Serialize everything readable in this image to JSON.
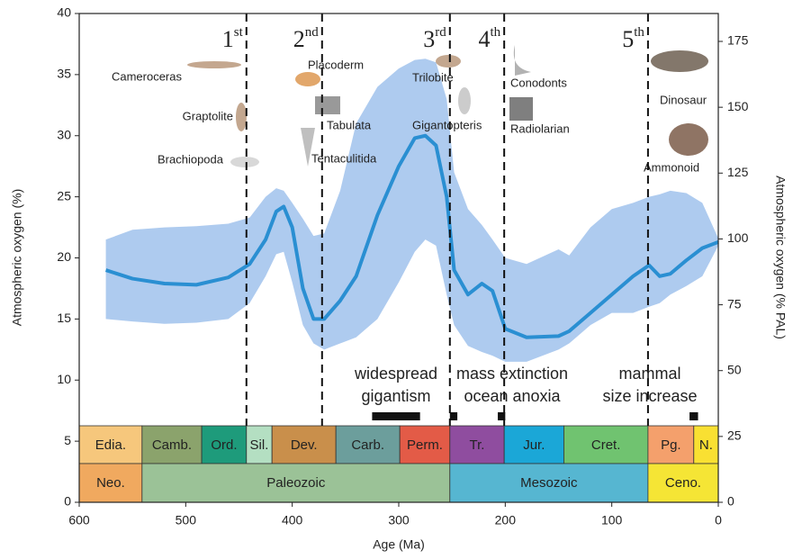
{
  "chart_data": {
    "type": "line",
    "xlabel": "Age (Ma)",
    "ylabel": "Atmospheric oxygen (%)",
    "y2label": "Atmospheric oxygen (% PAL)",
    "xlim": [
      600,
      0
    ],
    "ylim": [
      0,
      40
    ],
    "y2lim": [
      0,
      185.6
    ],
    "xticks": [
      600,
      500,
      400,
      300,
      200,
      100,
      0
    ],
    "yticks": [
      0,
      5,
      10,
      15,
      20,
      25,
      30,
      35,
      40
    ],
    "y2ticks": [
      0,
      25,
      50,
      75,
      100,
      125,
      150,
      175
    ],
    "x": [
      575,
      550,
      520,
      490,
      460,
      440,
      425,
      415,
      408,
      400,
      390,
      380,
      370,
      355,
      340,
      320,
      300,
      285,
      275,
      265,
      255,
      248,
      235,
      222,
      212,
      200,
      180,
      150,
      140,
      120,
      100,
      80,
      65,
      55,
      45,
      30,
      15,
      0
    ],
    "series": [
      {
        "color": "#2a8fd2",
        "values": [
          19,
          18.3,
          17.9,
          17.8,
          18.4,
          19.5,
          21.5,
          23.8,
          24.2,
          22.5,
          17.5,
          15,
          15,
          16.5,
          18.5,
          23.5,
          27.5,
          29.8,
          30,
          29.2,
          25,
          19,
          17,
          17.9,
          17.3,
          14.2,
          13.5,
          13.6,
          14,
          15.5,
          17,
          18.5,
          19.4,
          18.5,
          18.7,
          19.8,
          20.8,
          21.3
        ]
      }
    ],
    "band": {
      "color": "#aecbef",
      "upper": [
        21.5,
        22.3,
        22.5,
        22.6,
        22.8,
        23.3,
        25,
        25.7,
        25.5,
        24.5,
        23.2,
        21.8,
        22,
        25.5,
        31,
        34,
        35.5,
        36.2,
        36.3,
        36,
        33,
        27,
        24,
        22.7,
        21.5,
        20,
        19.5,
        20.7,
        20.2,
        22.5,
        24,
        24.5,
        25,
        25.2,
        25.5,
        25.3,
        24.5,
        21.6
      ],
      "lower": [
        15,
        14.8,
        14.6,
        14.7,
        15,
        16.3,
        18.5,
        20.3,
        20.5,
        18,
        14.5,
        13,
        12.5,
        13,
        13.5,
        15,
        18,
        20.5,
        21.5,
        21,
        17,
        14.5,
        12.8,
        12.3,
        12,
        11.5,
        11.5,
        12.5,
        13,
        14.5,
        15.5,
        15.5,
        16,
        16.3,
        17,
        17.7,
        18.5,
        21
      ]
    },
    "extinctions": [
      {
        "age": 443,
        "number": "1",
        "suffix": "st"
      },
      {
        "age": 372,
        "number": "2",
        "suffix": "nd"
      },
      {
        "age": 252,
        "number": "3",
        "suffix": "rd"
      },
      {
        "age": 201,
        "number": "4",
        "suffix": "th"
      },
      {
        "age": 66,
        "number": "5",
        "suffix": "th"
      }
    ],
    "events": [
      {
        "lines": [
          "widespread",
          "gigantism"
        ],
        "bars": [
          [
            325,
            280
          ]
        ]
      },
      {
        "lines": [
          "mass extinction",
          "ocean anoxia"
        ],
        "bars": [
          [
            252,
            245
          ],
          [
            207,
            200
          ]
        ]
      },
      {
        "lines": [
          "mammal",
          "size increase"
        ],
        "bars": [
          [
            27,
            19
          ]
        ]
      }
    ],
    "periods": [
      {
        "label": "Edia.",
        "start": 600,
        "end": 541,
        "color": "#f6c77c"
      },
      {
        "label": "Camb.",
        "start": 541,
        "end": 485,
        "color": "#8ba36c"
      },
      {
        "label": "Ord.",
        "start": 485,
        "end": 443,
        "color": "#1e9b7b"
      },
      {
        "label": "Sil.",
        "start": 443,
        "end": 419,
        "color": "#b4dfc2"
      },
      {
        "label": "Dev.",
        "start": 419,
        "end": 359,
        "color": "#c98f4b"
      },
      {
        "label": "Carb.",
        "start": 359,
        "end": 299,
        "color": "#6c9e9c"
      },
      {
        "label": "Perm.",
        "start": 299,
        "end": 252,
        "color": "#e35b47"
      },
      {
        "label": "Tr.",
        "start": 252,
        "end": 201,
        "color": "#8f4d9f"
      },
      {
        "label": "Jur.",
        "start": 201,
        "end": 145,
        "color": "#1ba7d7"
      },
      {
        "label": "Cret.",
        "start": 145,
        "end": 66,
        "color": "#70c370"
      },
      {
        "label": "Pg.",
        "start": 66,
        "end": 23,
        "color": "#f4a06c"
      },
      {
        "label": "N.",
        "start": 23,
        "end": 0,
        "color": "#f9e032"
      }
    ],
    "eras": [
      {
        "label": "Neo.",
        "start": 600,
        "end": 541,
        "color": "#f0a95f"
      },
      {
        "label": "Paleozoic",
        "start": 541,
        "end": 252,
        "color": "#9bc297"
      },
      {
        "label": "Mesozoic",
        "start": 252,
        "end": 66,
        "color": "#56b6d1"
      },
      {
        "label": "Ceno.",
        "start": 66,
        "end": 0,
        "color": "#f5e535"
      }
    ],
    "annotations": [
      "Cameroceras",
      "Graptolite",
      "Brachiopoda",
      "Placoderm",
      "Tabulata",
      "Tentaculitida",
      "Trilobite",
      "Gigantopteris",
      "Conodonts",
      "Radiolarian",
      "Dinosaur",
      "Ammonoid"
    ]
  }
}
